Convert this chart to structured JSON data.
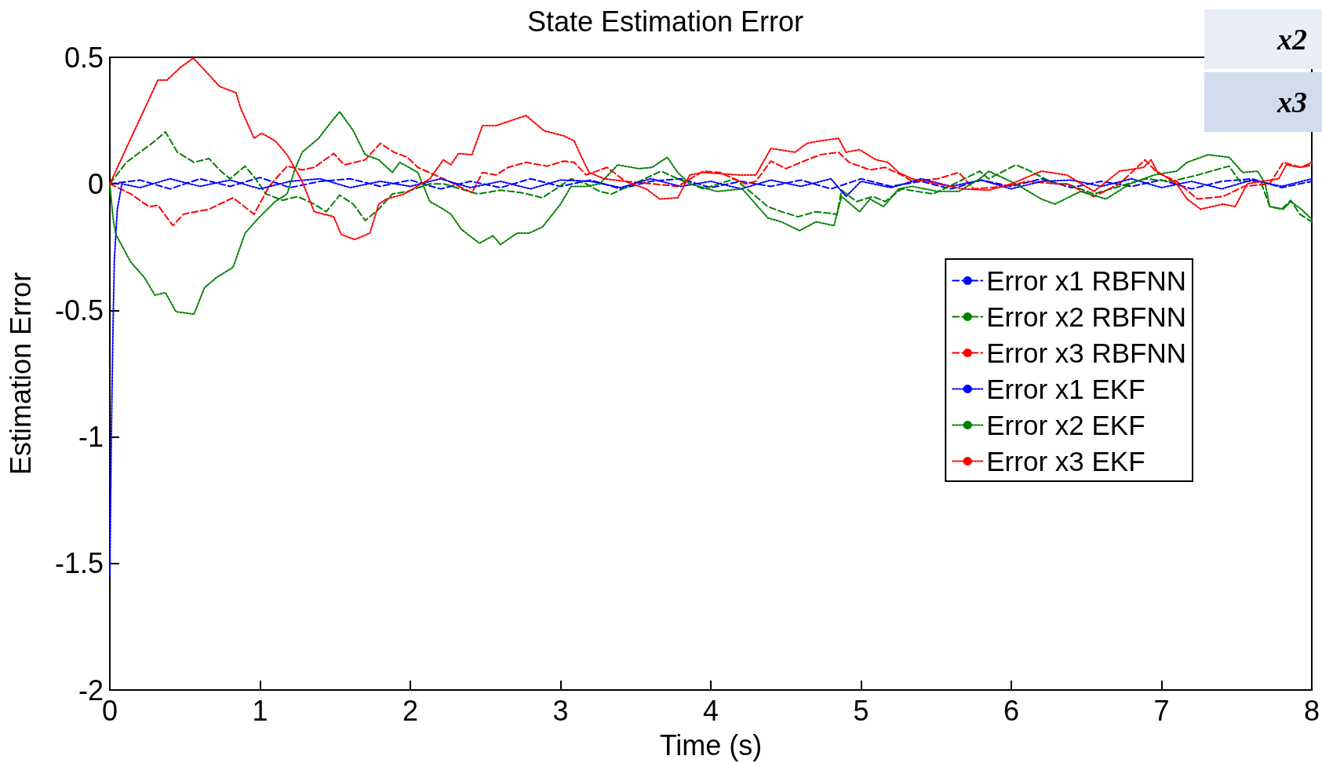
{
  "chart_data": {
    "type": "line",
    "title": "State Estimation Error",
    "xlabel": "Time (s)",
    "ylabel": "Estimation Error",
    "xlim": [
      0,
      8
    ],
    "xticks": [
      0,
      1,
      2,
      3,
      4,
      5,
      6,
      7,
      8
    ],
    "ylim": [
      -2,
      0.5
    ],
    "yticks": [
      -2,
      -1.5,
      -1,
      -0.5,
      0,
      0.5
    ],
    "grid": false,
    "legend": "right",
    "marker": "none",
    "annotations": [
      "x2",
      "x3"
    ],
    "series": [
      {
        "name": "Error x1 RBFNN",
        "color": "#0000ff",
        "line_style": "dashed",
        "x": [
          0,
          0.2,
          0.4,
          0.6,
          0.8,
          1.0,
          1.2,
          1.4,
          1.6,
          1.8,
          2.0,
          2.2,
          2.4,
          2.6,
          2.8,
          3.0,
          3.2,
          3.4,
          3.6,
          3.8,
          4.0,
          4.2,
          4.4,
          4.6,
          4.8,
          5.0,
          5.2,
          5.4,
          5.6,
          5.8,
          6.0,
          6.2,
          6.4,
          6.6,
          6.8,
          7.0,
          7.2,
          7.4,
          7.6,
          7.8,
          8.0
        ],
        "values": [
          0,
          0.015,
          -0.02,
          0.02,
          -0.01,
          0.025,
          -0.015,
          0.01,
          0.02,
          -0.01,
          0.015,
          -0.02,
          0.01,
          -0.015,
          0.02,
          -0.01,
          0.015,
          -0.02,
          0.01,
          0.02,
          -0.015,
          0.01,
          -0.01,
          0.015,
          -0.02,
          0.02,
          -0.01,
          0.01,
          -0.02,
          0.015,
          -0.01,
          0.02,
          -0.015,
          0.01,
          -0.01,
          0.015,
          -0.02,
          0.01,
          0.02,
          -0.015,
          0.01
        ]
      },
      {
        "name": "Error x2 RBFNN",
        "color": "#008000",
        "line_style": "dashed",
        "x": [
          0,
          0.11,
          0.28,
          0.37,
          0.45,
          0.56,
          0.66,
          0.73,
          0.8,
          0.9,
          0.97,
          1.04,
          1.15,
          1.25,
          1.36,
          1.44,
          1.53,
          1.62,
          1.7,
          1.79,
          1.88,
          1.98,
          2.13,
          2.22,
          2.45,
          2.6,
          2.74,
          2.88,
          3.07,
          3.17,
          3.26,
          3.34,
          3.67,
          3.78,
          3.95,
          4.16,
          4.3,
          4.38,
          4.47,
          4.58,
          4.7,
          4.84,
          4.87,
          4.97,
          5.08,
          5.16,
          5.27,
          5.48,
          5.62,
          5.79,
          5.85,
          6.03,
          6.11,
          6.29,
          6.37,
          6.55,
          6.72,
          6.89,
          7.07,
          7.24,
          7.45,
          7.52,
          7.66,
          7.72,
          7.8,
          7.86,
          7.92,
          8.0
        ],
        "values": [
          0,
          0.085,
          0.16,
          0.205,
          0.125,
          0.085,
          0.1,
          0.055,
          0.02,
          0.07,
          0.02,
          -0.04,
          -0.065,
          -0.05,
          -0.08,
          -0.11,
          -0.045,
          -0.08,
          -0.145,
          -0.1,
          -0.04,
          -0.03,
          0,
          0,
          -0.04,
          -0.025,
          -0.035,
          -0.055,
          0.02,
          0,
          -0.03,
          -0.04,
          0.05,
          0.02,
          -0.02,
          0.02,
          -0.05,
          -0.09,
          -0.11,
          -0.13,
          -0.11,
          -0.12,
          -0.025,
          -0.07,
          -0.05,
          -0.07,
          -0.02,
          -0.04,
          0,
          0.05,
          0.02,
          0.075,
          0.055,
          0,
          0,
          -0.04,
          -0.01,
          0.02,
          0.01,
          0.035,
          0.07,
          0.01,
          0.01,
          -0.09,
          -0.1,
          -0.065,
          -0.12,
          -0.15
        ]
      },
      {
        "name": "Error x3 RBFNN",
        "color": "#ff0000",
        "line_style": "dashed",
        "x": [
          0,
          0.14,
          0.26,
          0.32,
          0.42,
          0.49,
          0.66,
          0.82,
          0.96,
          1.06,
          1.18,
          1.28,
          1.36,
          1.49,
          1.56,
          1.7,
          1.8,
          1.89,
          1.98,
          2.05,
          2.22,
          2.41,
          2.48,
          2.57,
          2.65,
          2.77,
          2.91,
          3.02,
          3.09,
          3.17,
          3.31,
          3.43,
          3.61,
          3.78,
          3.95,
          4.06,
          4.23,
          4.3,
          4.4,
          4.5,
          4.64,
          4.73,
          4.85,
          4.92,
          5.06,
          5.16,
          5.27,
          5.34,
          5.51,
          5.65,
          5.75,
          5.96,
          6.11,
          6.31,
          6.37,
          6.55,
          6.72,
          6.89,
          6.97,
          7.1,
          7.24,
          7.41,
          7.55,
          7.72,
          7.81,
          7.93,
          8.0
        ],
        "values": [
          0,
          -0.04,
          -0.09,
          -0.085,
          -0.165,
          -0.12,
          -0.1,
          -0.055,
          -0.12,
          -0.01,
          0.07,
          0.055,
          0.065,
          0.12,
          0.075,
          0.095,
          0.16,
          0.125,
          0.105,
          0.065,
          0.02,
          -0.035,
          0.045,
          0.035,
          0.065,
          0.085,
          0.07,
          0.09,
          0.085,
          0.035,
          0.065,
          0.01,
          0,
          -0.01,
          0.05,
          0.045,
          0,
          0.01,
          0.09,
          0.06,
          0.095,
          0.115,
          0.125,
          0.085,
          0.055,
          0.065,
          0.035,
          0.01,
          0.02,
          0.045,
          -0.02,
          -0.01,
          0.01,
          0,
          0,
          -0.05,
          0,
          0.095,
          0.045,
          0.01,
          -0.06,
          -0.05,
          -0.01,
          0,
          0.085,
          0.065,
          0.075
        ]
      },
      {
        "name": "Error x1 EKF",
        "color": "#0000ff",
        "line_style": "dotted",
        "x": [
          0,
          0.01,
          0.02,
          0.03,
          0.05,
          0.08,
          0.2,
          0.4,
          0.6,
          0.8,
          1.0,
          1.2,
          1.4,
          1.6,
          1.8,
          2.0,
          2.2,
          2.4,
          2.6,
          2.8,
          3.0,
          3.2,
          3.4,
          3.6,
          3.8,
          4.0,
          4.2,
          4.4,
          4.6,
          4.8,
          4.9,
          5.0,
          5.2,
          5.4,
          5.6,
          5.8,
          6.0,
          6.2,
          6.4,
          6.6,
          6.8,
          7.0,
          7.2,
          7.4,
          7.6,
          7.8,
          8.0
        ],
        "values": [
          -1.55,
          -1.0,
          -0.6,
          -0.3,
          -0.1,
          0,
          -0.015,
          0.02,
          -0.01,
          0.015,
          -0.02,
          0.01,
          0.02,
          -0.015,
          0.01,
          -0.01,
          0.02,
          -0.015,
          0.01,
          -0.02,
          0.015,
          0.01,
          -0.015,
          0.02,
          -0.01,
          0.01,
          -0.02,
          0.015,
          -0.01,
          0.02,
          -0.05,
          0.01,
          -0.015,
          0.02,
          -0.01,
          0.015,
          -0.02,
          0.01,
          0.015,
          -0.01,
          0.02,
          -0.015,
          0.01,
          -0.02,
          0.015,
          -0.01,
          0.02
        ]
      },
      {
        "name": "Error x2 EKF",
        "color": "#008000",
        "line_style": "dotted",
        "x": [
          0,
          0.02,
          0.04,
          0.14,
          0.23,
          0.3,
          0.37,
          0.44,
          0.56,
          0.63,
          0.71,
          0.82,
          0.9,
          0.99,
          1.1,
          1.18,
          1.23,
          1.28,
          1.39,
          1.48,
          1.53,
          1.62,
          1.7,
          1.79,
          1.88,
          1.93,
          2.05,
          2.13,
          2.22,
          2.27,
          2.34,
          2.46,
          2.55,
          2.6,
          2.71,
          2.79,
          2.88,
          3.0,
          3.07,
          3.17,
          3.26,
          3.38,
          3.52,
          3.61,
          3.71,
          3.78,
          3.86,
          4.04,
          4.21,
          4.38,
          4.47,
          4.59,
          4.7,
          4.82,
          4.87,
          4.99,
          5.06,
          5.15,
          5.25,
          5.34,
          5.51,
          5.65,
          5.79,
          5.85,
          6.03,
          6.2,
          6.29,
          6.46,
          6.63,
          6.79,
          6.95,
          7.1,
          7.17,
          7.31,
          7.45,
          7.54,
          7.64,
          7.69,
          7.72,
          7.81,
          7.86,
          7.93,
          8.0
        ],
        "values": [
          0,
          -0.13,
          -0.2,
          -0.31,
          -0.37,
          -0.44,
          -0.43,
          -0.505,
          -0.515,
          -0.41,
          -0.37,
          -0.33,
          -0.195,
          -0.135,
          -0.07,
          -0.04,
          0.055,
          0.125,
          0.18,
          0.25,
          0.285,
          0.21,
          0.115,
          0.095,
          0.045,
          0.085,
          0.045,
          -0.07,
          -0.1,
          -0.12,
          -0.18,
          -0.235,
          -0.205,
          -0.24,
          -0.195,
          -0.195,
          -0.17,
          -0.08,
          -0.01,
          -0.01,
          0,
          0.075,
          0.06,
          0.065,
          0.105,
          0.045,
          0,
          -0.03,
          -0.02,
          -0.135,
          -0.15,
          -0.185,
          -0.15,
          -0.165,
          -0.05,
          -0.11,
          -0.06,
          -0.09,
          -0.02,
          -0.01,
          -0.03,
          -0.03,
          0.02,
          0.05,
          0,
          -0.06,
          -0.08,
          -0.03,
          -0.06,
          0,
          0.035,
          0.05,
          0.085,
          0.115,
          0.105,
          0.045,
          0.05,
          0,
          -0.09,
          -0.1,
          -0.07,
          -0.1,
          -0.14
        ]
      },
      {
        "name": "Error x3 EKF",
        "color": "#ff0000",
        "line_style": "dotted",
        "x": [
          0,
          0.14,
          0.32,
          0.38,
          0.47,
          0.556,
          0.73,
          0.84,
          0.87,
          0.96,
          1.01,
          1.1,
          1.18,
          1.28,
          1.36,
          1.49,
          1.54,
          1.63,
          1.73,
          1.79,
          1.84,
          1.96,
          2.13,
          2.22,
          2.27,
          2.32,
          2.41,
          2.48,
          2.57,
          2.67,
          2.77,
          2.89,
          3.02,
          3.09,
          3.14,
          3.19,
          3.29,
          3.43,
          3.57,
          3.66,
          3.78,
          3.86,
          3.95,
          4.19,
          4.3,
          4.4,
          4.56,
          4.64,
          4.73,
          4.85,
          4.9,
          4.99,
          5.1,
          5.18,
          5.25,
          5.34,
          5.51,
          5.68,
          5.85,
          6.0,
          6.2,
          6.37,
          6.55,
          6.72,
          6.88,
          6.93,
          6.97,
          7.1,
          7.17,
          7.26,
          7.41,
          7.49,
          7.57,
          7.67,
          7.78,
          7.83,
          7.93,
          8.0
        ],
        "values": [
          0,
          0.18,
          0.41,
          0.41,
          0.46,
          0.497,
          0.385,
          0.36,
          0.3,
          0.18,
          0.2,
          0.17,
          0.115,
          0.01,
          -0.11,
          -0.13,
          -0.2,
          -0.22,
          -0.195,
          -0.08,
          -0.06,
          -0.04,
          0.02,
          0.095,
          0.075,
          0.12,
          0.115,
          0.23,
          0.23,
          0.25,
          0.27,
          0.21,
          0.19,
          0.17,
          0.105,
          0.045,
          0.02,
          0.01,
          -0.02,
          -0.06,
          -0.055,
          0.035,
          0.045,
          0.035,
          0.035,
          0.14,
          0.125,
          0.16,
          0.17,
          0.18,
          0.125,
          0.135,
          0.095,
          0.085,
          0.045,
          0.02,
          0,
          -0.02,
          -0.025,
          0,
          0.05,
          0.035,
          -0.03,
          0.05,
          0.065,
          0.095,
          0.05,
          0,
          -0.06,
          -0.1,
          -0.08,
          -0.09,
          0,
          0.01,
          0.02,
          0.075,
          0.065,
          0.085
        ]
      }
    ]
  }
}
